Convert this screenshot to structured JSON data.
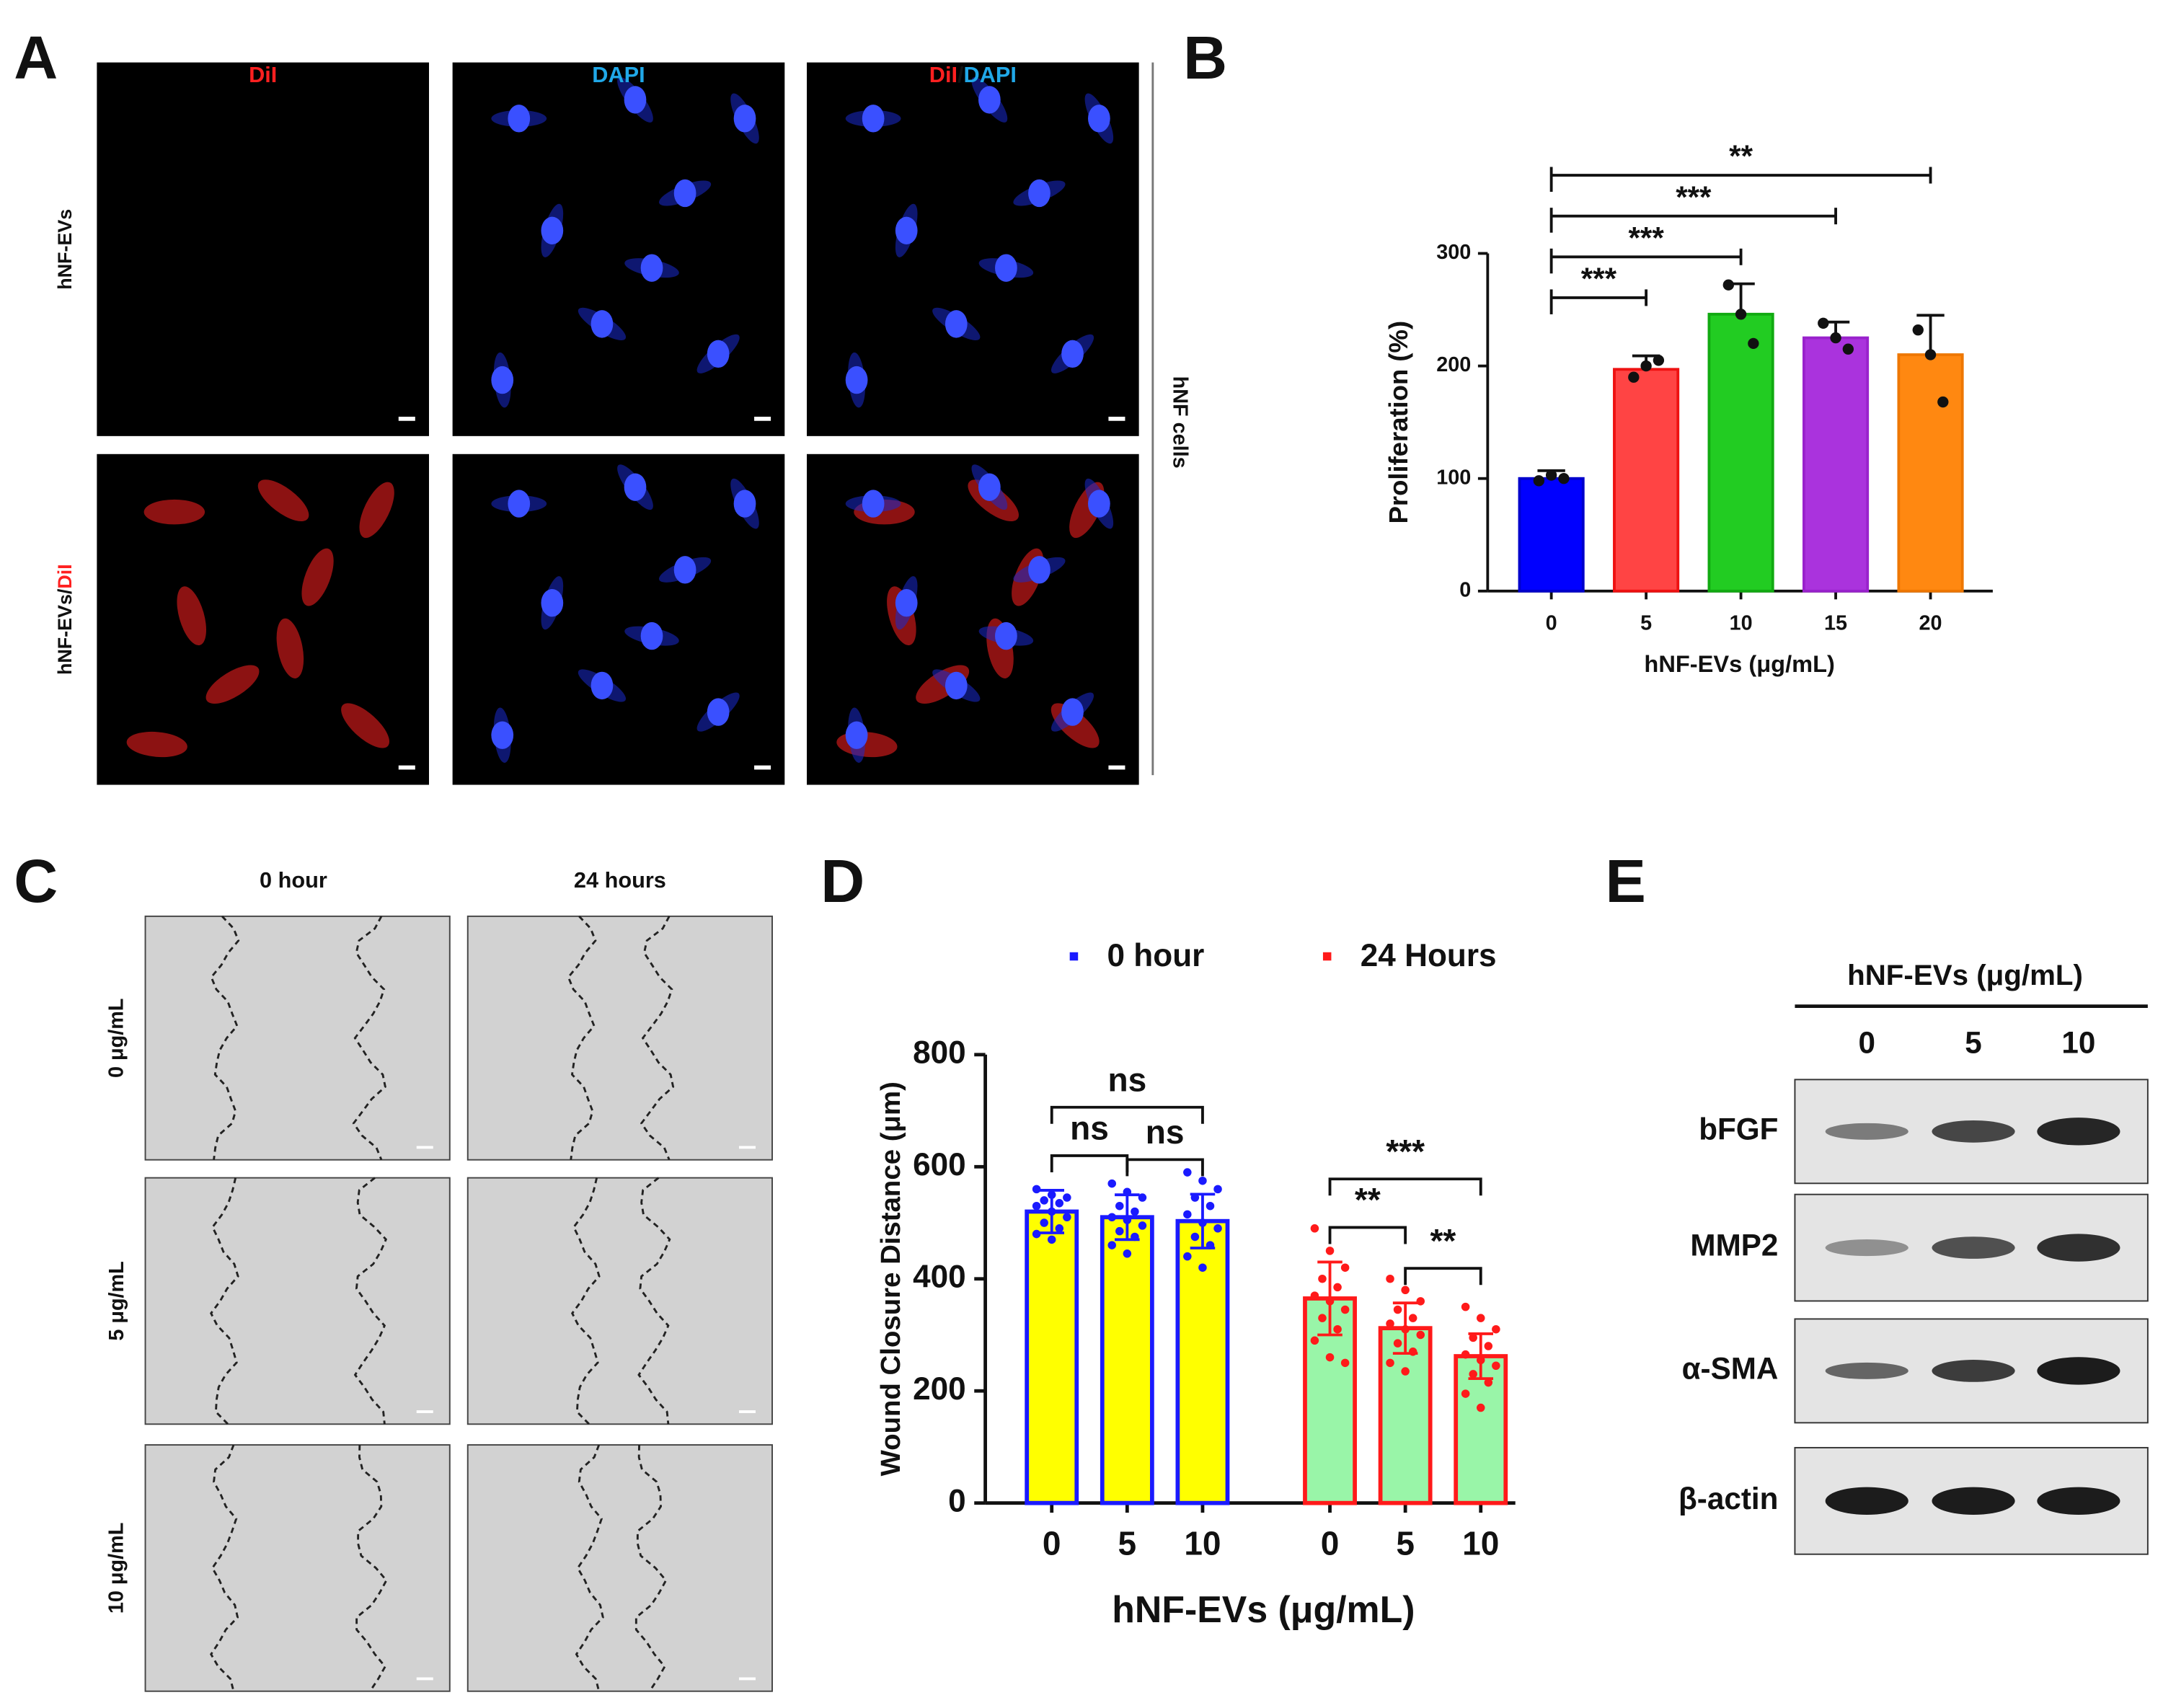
{
  "panel_a": {
    "label": "A",
    "columns": [
      [
        {
          "text": "DiI",
          "color": "#ff2020"
        }
      ],
      [
        {
          "text": "DAPI",
          "color": "#20a8e8"
        }
      ],
      [
        {
          "text": "DiI",
          "color": "#ff2020"
        },
        {
          "text": "/",
          "color": "#111111"
        },
        {
          "text": "DAPI",
          "color": "#20a8e8"
        }
      ]
    ],
    "rows": [
      [
        {
          "text": "hNF-EVs",
          "color": "#111111"
        }
      ],
      [
        {
          "text": "hNF-EVs/",
          "color": "#111111"
        },
        {
          "text": "DiI",
          "color": "#ff2020"
        }
      ]
    ],
    "side_label": "hNF cells"
  },
  "panel_b": {
    "label": "B",
    "chart_data": {
      "type": "bar",
      "categories": [
        "0",
        "5",
        "10",
        "15",
        "20"
      ],
      "values": [
        100,
        197,
        246,
        225,
        210
      ],
      "errors": [
        7,
        12,
        27,
        14,
        35
      ],
      "points": [
        [
          98,
          103,
          100
        ],
        [
          190,
          200,
          205
        ],
        [
          272,
          246,
          220
        ],
        [
          238,
          225,
          215
        ],
        [
          232,
          210,
          168
        ]
      ],
      "colors": [
        "#0000ff",
        "#ff4444",
        "#22cc22",
        "#aa33dd",
        "#ff8811"
      ],
      "edge_colors": [
        "#0000cc",
        "#ee1111",
        "#11aa11",
        "#9922cc",
        "#ee7700"
      ],
      "ylim": [
        0,
        300
      ],
      "yticks": [
        0,
        100,
        200,
        300
      ],
      "xlabel": "hNF-EVs (μg/mL)",
      "ylabel": "Proliferation (%)",
      "significance": [
        {
          "between": [
            0,
            1
          ],
          "label": "***"
        },
        {
          "between": [
            0,
            2
          ],
          "label": "***"
        },
        {
          "between": [
            0,
            3
          ],
          "label": "***"
        },
        {
          "between": [
            0,
            4
          ],
          "label": "**"
        }
      ]
    }
  },
  "panel_c": {
    "label": "C",
    "columns": [
      "0 hour",
      "24 hours"
    ],
    "rows": [
      "0 μg/mL",
      "5 μg/mL",
      "10 μg/mL"
    ]
  },
  "panel_d": {
    "label": "D",
    "chart_data": {
      "type": "grouped_bar",
      "categories": [
        "0",
        "5",
        "10"
      ],
      "series": [
        {
          "name": "0 hour",
          "color": "#1a1aff",
          "fill": "#ffff00",
          "values": [
            520,
            510,
            503
          ],
          "errors": [
            38,
            40,
            48
          ],
          "points": [
            [
              560,
              550,
              545,
              540,
              535,
              530,
              520,
              510,
              500,
              490,
              480,
              470
            ],
            [
              570,
              555,
              545,
              530,
              520,
              510,
              505,
              495,
              485,
              475,
              460,
              445
            ],
            [
              590,
              575,
              560,
              545,
              530,
              515,
              500,
              490,
              475,
              460,
              440,
              420
            ]
          ]
        },
        {
          "name": "24 Hours",
          "color": "#ff1a1a",
          "fill": "#99f5a8",
          "values": [
            365,
            312,
            262
          ],
          "errors": [
            65,
            45,
            40
          ],
          "points": [
            [
              490,
              450,
              420,
              400,
              385,
              370,
              360,
              345,
              330,
              310,
              290,
              260,
              250
            ],
            [
              400,
              380,
              360,
              345,
              330,
              320,
              310,
              300,
              285,
              270,
              250,
              235
            ],
            [
              350,
              330,
              310,
              295,
              280,
              265,
              255,
              245,
              230,
              215,
              195,
              170
            ]
          ]
        }
      ],
      "ylim": [
        0,
        800
      ],
      "yticks": [
        0,
        200,
        400,
        600,
        800
      ],
      "xlabel": "hNF-EVs (μg/mL)",
      "ylabel": "Wound Closure Distance (μm)",
      "significance": [
        {
          "series": 0,
          "between": [
            0,
            1
          ],
          "label": "ns"
        },
        {
          "series": 0,
          "between": [
            1,
            2
          ],
          "label": "ns"
        },
        {
          "series": 0,
          "between": [
            0,
            2
          ],
          "label": "ns"
        },
        {
          "series": 1,
          "between": [
            0,
            1
          ],
          "label": "**"
        },
        {
          "series": 1,
          "between": [
            1,
            2
          ],
          "label": "**"
        },
        {
          "series": 1,
          "between": [
            0,
            2
          ],
          "label": "***"
        }
      ]
    }
  },
  "panel_e": {
    "label": "E",
    "title": "hNF-EVs (μg/mL)",
    "lanes": [
      "0",
      "5",
      "10"
    ],
    "rows": [
      "bFGF",
      "MMP2",
      "α-SMA",
      "β-actin"
    ]
  }
}
